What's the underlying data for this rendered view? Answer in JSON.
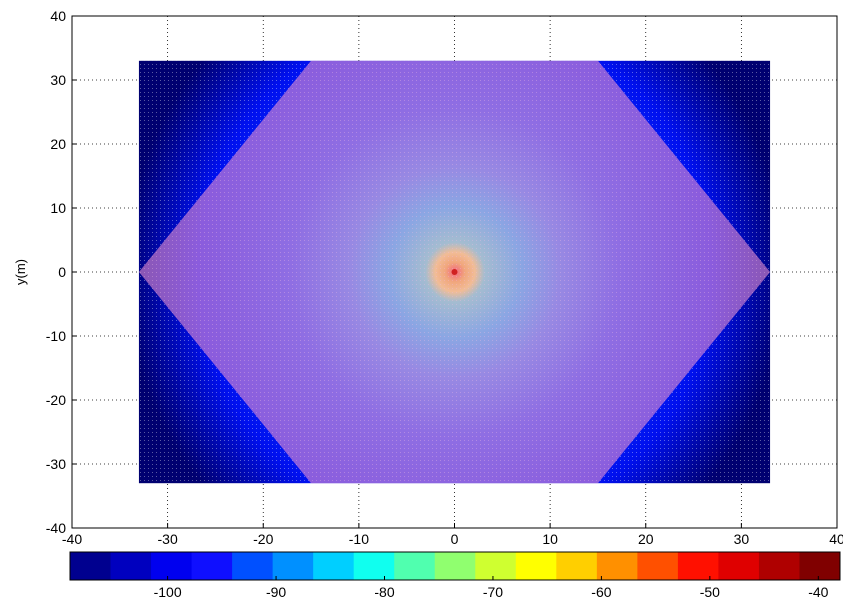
{
  "chart_data": {
    "type": "heatmap",
    "title": "",
    "xlabel": "",
    "ylabel": "y(m)",
    "xlim": [
      -40,
      40
    ],
    "ylim": [
      -40,
      40
    ],
    "x_ticks": [
      "-40",
      "-30",
      "-20",
      "-10",
      "0",
      "10",
      "20",
      "30",
      "40"
    ],
    "y_ticks": [
      "40",
      "30",
      "20",
      "10",
      "0",
      "-10",
      "-20",
      "-30",
      "-40"
    ],
    "grid": true,
    "grid_style": "dotted",
    "field_extent": {
      "x": [
        -33,
        33
      ],
      "y": [
        -33,
        33
      ]
    },
    "hexagon_vertices": [
      [
        -33,
        0
      ],
      [
        -15,
        33
      ],
      [
        15,
        33
      ],
      [
        33,
        0
      ],
      [
        15,
        -33
      ],
      [
        -15,
        -33
      ]
    ],
    "hexagon_overlay_color": "#e890d0",
    "source": {
      "x": 0,
      "y": 0
    },
    "colorbar": {
      "position": "bottom",
      "range": [
        -109,
        -38
      ],
      "ticks": [
        "-100",
        "-90",
        "-80",
        "-70",
        "-60",
        "-50",
        "-40"
      ],
      "colormap": "jet",
      "colors": [
        "#00008f",
        "#0000bf",
        "#0000ef",
        "#0f0fff",
        "#0050ff",
        "#0090ff",
        "#00cfff",
        "#10ffef",
        "#50ffaf",
        "#90ff6f",
        "#cfff30",
        "#ffff00",
        "#ffcf00",
        "#ff9000",
        "#ff5000",
        "#ff1000",
        "#df0000",
        "#af0000",
        "#800000"
      ]
    }
  }
}
